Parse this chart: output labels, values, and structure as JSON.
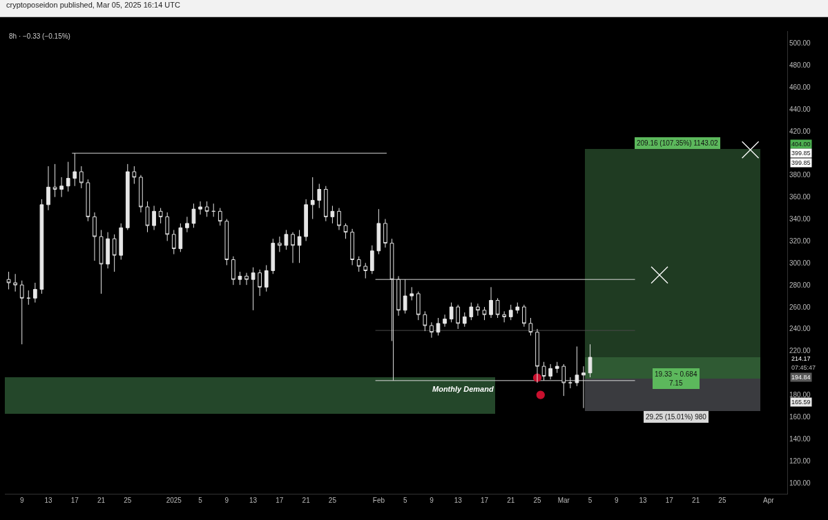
{
  "chart_data": {
    "type": "candlestick",
    "title": "cryptoposeidon published, Mar 05, 2025 16:14 UTC",
    "subtitle": "8h · −0.33 (−0.15%)",
    "color": "#e6e6e6",
    "x": [
      "2024-12-07",
      "2024-12-08",
      "2024-12-09",
      "2024-12-10",
      "2024-12-11",
      "2024-12-12",
      "2024-12-13",
      "2024-12-14",
      "2024-12-15",
      "2024-12-16",
      "2024-12-17",
      "2024-12-18",
      "2024-12-19",
      "2024-12-20",
      "2024-12-21",
      "2024-12-22",
      "2024-12-23",
      "2024-12-24",
      "2024-12-25",
      "2024-12-26",
      "2024-12-27",
      "2024-12-28",
      "2024-12-29",
      "2024-12-30",
      "2024-12-31",
      "2025-01-01",
      "2025-01-02",
      "2025-01-03",
      "2025-01-04",
      "2025-01-05",
      "2025-01-06",
      "2025-01-07",
      "2025-01-08",
      "2025-01-09",
      "2025-01-10",
      "2025-01-11",
      "2025-01-12",
      "2025-01-13",
      "2025-01-14",
      "2025-01-15",
      "2025-01-16",
      "2025-01-17",
      "2025-01-18",
      "2025-01-19",
      "2025-01-20",
      "2025-01-21",
      "2025-01-22",
      "2025-01-23",
      "2025-01-24",
      "2025-01-25",
      "2025-01-26",
      "2025-01-27",
      "2025-01-28",
      "2025-01-29",
      "2025-01-30",
      "2025-01-31",
      "2025-02-01",
      "2025-02-02",
      "2025-02-03",
      "2025-02-04",
      "2025-02-05",
      "2025-02-06",
      "2025-02-07",
      "2025-02-08",
      "2025-02-09",
      "2025-02-10",
      "2025-02-11",
      "2025-02-12",
      "2025-02-13",
      "2025-02-14",
      "2025-02-15",
      "2025-02-16",
      "2025-02-17",
      "2025-02-18",
      "2025-02-19",
      "2025-02-20",
      "2025-02-21",
      "2025-02-22",
      "2025-02-23",
      "2025-02-24",
      "2025-02-25",
      "2025-02-26",
      "2025-02-27",
      "2025-02-28",
      "2025-03-01",
      "2025-03-02",
      "2025-03-03",
      "2025-03-04",
      "2025-03-05"
    ],
    "ohlc": [
      [
        285,
        292,
        276,
        282
      ],
      [
        282,
        290,
        274,
        280
      ],
      [
        280,
        284,
        226,
        268
      ],
      [
        268,
        275,
        262,
        268
      ],
      [
        268,
        282,
        264,
        276
      ],
      [
        276,
        358,
        272,
        353
      ],
      [
        353,
        388,
        348,
        369
      ],
      [
        369,
        390,
        360,
        367
      ],
      [
        367,
        378,
        360,
        370
      ],
      [
        370,
        392,
        365,
        377
      ],
      [
        377,
        399.85,
        370,
        383
      ],
      [
        383,
        388,
        368,
        373
      ],
      [
        373,
        376,
        338,
        342
      ],
      [
        342,
        346,
        302,
        324
      ],
      [
        324,
        330,
        272,
        299
      ],
      [
        299,
        328,
        295,
        322
      ],
      [
        322,
        326,
        292,
        307
      ],
      [
        307,
        336,
        303,
        332
      ],
      [
        332,
        390,
        330,
        383
      ],
      [
        383,
        388,
        372,
        378
      ],
      [
        378,
        380,
        346,
        351
      ],
      [
        351,
        356,
        328,
        334
      ],
      [
        334,
        352,
        330,
        347
      ],
      [
        347,
        350,
        336,
        342
      ],
      [
        342,
        346,
        320,
        326
      ],
      [
        326,
        330,
        308,
        313
      ],
      [
        313,
        336,
        310,
        332
      ],
      [
        332,
        342,
        328,
        336
      ],
      [
        336,
        354,
        332,
        349
      ],
      [
        349,
        356,
        344,
        351
      ],
      [
        351,
        356,
        342,
        347
      ],
      [
        347,
        354,
        342,
        347
      ],
      [
        347,
        350,
        334,
        338
      ],
      [
        338,
        340,
        298,
        303
      ],
      [
        303,
        306,
        280,
        285
      ],
      [
        285,
        292,
        280,
        288
      ],
      [
        288,
        291,
        280,
        285
      ],
      [
        285,
        296,
        257,
        291
      ],
      [
        291,
        294,
        270,
        278
      ],
      [
        278,
        298,
        274,
        293
      ],
      [
        293,
        322,
        290,
        318
      ],
      [
        318,
        324,
        310,
        316
      ],
      [
        316,
        330,
        312,
        326
      ],
      [
        326,
        328,
        300,
        316
      ],
      [
        316,
        330,
        300,
        324
      ],
      [
        324,
        358,
        320,
        353
      ],
      [
        353,
        378,
        340,
        357
      ],
      [
        357,
        372,
        350,
        367
      ],
      [
        367,
        370,
        338,
        342
      ],
      [
        342,
        352,
        336,
        347
      ],
      [
        347,
        350,
        330,
        334
      ],
      [
        334,
        336,
        322,
        328
      ],
      [
        328,
        331,
        298,
        303
      ],
      [
        303,
        306,
        292,
        297
      ],
      [
        297,
        300,
        286,
        293
      ],
      [
        293,
        316,
        290,
        311
      ],
      [
        311,
        349,
        308,
        336
      ],
      [
        336,
        340,
        314,
        318
      ],
      [
        318,
        322,
        229,
        285
      ],
      [
        285,
        288,
        252,
        257
      ],
      [
        257,
        285,
        254,
        270
      ],
      [
        270,
        278,
        266,
        272
      ],
      [
        272,
        274,
        248,
        253
      ],
      [
        253,
        256,
        238,
        243
      ],
      [
        243,
        246,
        232,
        237
      ],
      [
        237,
        250,
        234,
        245
      ],
      [
        245,
        253,
        242,
        249
      ],
      [
        249,
        264,
        246,
        260
      ],
      [
        260,
        262,
        240,
        245
      ],
      [
        245,
        255,
        242,
        251
      ],
      [
        251,
        264,
        248,
        260
      ],
      [
        260,
        263,
        252,
        257
      ],
      [
        257,
        260,
        248,
        253
      ],
      [
        253,
        278,
        250,
        266
      ],
      [
        266,
        268,
        250,
        253
      ],
      [
        253,
        256,
        246,
        251
      ],
      [
        251,
        262,
        248,
        257
      ],
      [
        257,
        264,
        254,
        260
      ],
      [
        260,
        262,
        242,
        245
      ],
      [
        245,
        250,
        234,
        237
      ],
      [
        237,
        240,
        191,
        206
      ],
      [
        206,
        210,
        193,
        197
      ],
      [
        197,
        208,
        194,
        204
      ],
      [
        204,
        210,
        200,
        206
      ],
      [
        206,
        208,
        179,
        191
      ],
      [
        191,
        196,
        186,
        191
      ],
      [
        191,
        224,
        188,
        198
      ],
      [
        198,
        206,
        168,
        200
      ],
      [
        200,
        226,
        196,
        214.17
      ]
    ],
    "series": [
      {
        "type": "bar",
        "color": "#24472a",
        "x": [
          "2024-12-24T23:00",
          "2025-01-31T01:00"
        ],
        "base": [
          162.7,
          162.7
        ],
        "values": [
          33.6,
          33.6
        ]
      },
      {
        "type": "bar",
        "color": "#1f3b22",
        "x": [
          "2025-03-10T20:00",
          "2025-03-24T02:00"
        ],
        "base": [
          194.84,
          194.84
        ],
        "values": [
          209.16,
          209.16
        ]
      },
      {
        "type": "bar",
        "color": "#2f5a33",
        "x": [
          "2025-03-10T20:00",
          "2025-03-24T02:00"
        ],
        "base": [
          194.84,
          194.84
        ],
        "values": [
          19.33,
          19.33
        ]
      },
      {
        "type": "bar",
        "color": "#3a3b3f",
        "x": [
          "2025-03-10T20:00",
          "2025-03-24T02:00"
        ],
        "base": [
          165.59,
          165.59
        ],
        "values": [
          29.25,
          29.25
        ]
      },
      {
        "type": "line",
        "color": "#d9d9d9",
        "x": [
          "2024-12-16T14:00",
          "2025-02-02T05:00"
        ],
        "values": [
          399.85,
          399.85
        ]
      },
      {
        "type": "line",
        "color": "#d9d9d9",
        "x": [
          "2025-01-31T12:00",
          "2025-03-11T19:00"
        ],
        "values": [
          285,
          285
        ]
      },
      {
        "type": "line",
        "color": "#4a4a4a",
        "x": [
          "2025-01-31T12:00",
          "2025-03-11T19:00"
        ],
        "values": [
          238.6,
          238.6
        ]
      },
      {
        "type": "line",
        "color": "#d9d9d9",
        "x": [
          "2025-01-31T12:00",
          "2025-03-11T19:00"
        ],
        "values": [
          193,
          193
        ]
      },
      {
        "type": "line",
        "color": "#d9d9d9",
        "x": [
          "2025-02-03T05:00",
          "2025-02-03T05:00"
        ],
        "values": [
          193,
          285
        ]
      },
      {
        "type": "scatter",
        "marker": "cross",
        "color": "#ffffff",
        "x": [
          "2025-03-15T12:00",
          "2025-03-29T06:00"
        ],
        "values": [
          289,
          402.9
        ]
      },
      {
        "type": "scatter",
        "marker": "circle",
        "color": "#c8102e",
        "x": [
          "2025-02-25T00:00",
          "2025-02-25T12:00"
        ],
        "values": [
          195.6,
          180
        ]
      }
    ],
    "xlim": [
      "2024-12-06T10:00",
      "2025-04-03T20:00"
    ],
    "xticks": [
      {
        "value": "2024-12-09",
        "label": "9"
      },
      {
        "value": "2024-12-13",
        "label": "13"
      },
      {
        "value": "2024-12-17",
        "label": "17"
      },
      {
        "value": "2024-12-21",
        "label": "21"
      },
      {
        "value": "2024-12-25",
        "label": "25"
      },
      {
        "value": "2025-01-01",
        "label": "2025"
      },
      {
        "value": "2025-01-05",
        "label": "5"
      },
      {
        "value": "2025-01-09",
        "label": "9"
      },
      {
        "value": "2025-01-13",
        "label": "13"
      },
      {
        "value": "2025-01-17",
        "label": "17"
      },
      {
        "value": "2025-01-21",
        "label": "21"
      },
      {
        "value": "2025-01-25",
        "label": "25"
      },
      {
        "value": "2025-02-01",
        "label": "Feb"
      },
      {
        "value": "2025-02-05",
        "label": "5"
      },
      {
        "value": "2025-02-09",
        "label": "9"
      },
      {
        "value": "2025-02-13",
        "label": "13"
      },
      {
        "value": "2025-02-17",
        "label": "17"
      },
      {
        "value": "2025-02-21",
        "label": "21"
      },
      {
        "value": "2025-02-25",
        "label": "25"
      },
      {
        "value": "2025-03-01",
        "label": "Mar"
      },
      {
        "value": "2025-03-05",
        "label": "5"
      },
      {
        "value": "2025-03-09",
        "label": "9"
      },
      {
        "value": "2025-03-13",
        "label": "13"
      },
      {
        "value": "2025-03-17",
        "label": "17"
      },
      {
        "value": "2025-03-21",
        "label": "21"
      },
      {
        "value": "2025-03-25",
        "label": "25"
      },
      {
        "value": "2025-04-01",
        "label": "Apr"
      }
    ],
    "ylim": [
      90,
      511
    ],
    "yticks": [
      {
        "value": 100,
        "label": "100.00"
      },
      {
        "value": 120,
        "label": "120.00"
      },
      {
        "value": 140,
        "label": "140.00"
      },
      {
        "value": 160,
        "label": "160.00"
      },
      {
        "value": 180,
        "label": "180.00"
      },
      {
        "value": 220,
        "label": "220.00"
      },
      {
        "value": 240,
        "label": "240.00"
      },
      {
        "value": 260,
        "label": "260.00"
      },
      {
        "value": 280,
        "label": "280.00"
      },
      {
        "value": 300,
        "label": "300.00"
      },
      {
        "value": 320,
        "label": "320.00"
      },
      {
        "value": 340,
        "label": "340.00"
      },
      {
        "value": 360,
        "label": "360.00"
      },
      {
        "value": 380,
        "label": "380.00"
      },
      {
        "value": 420,
        "label": "420.00"
      },
      {
        "value": 440,
        "label": "440.00"
      },
      {
        "value": 460,
        "label": "460.00"
      },
      {
        "value": 480,
        "label": "480.00"
      },
      {
        "value": 500,
        "label": "500.00"
      }
    ],
    "grid": false,
    "annotations": [
      "Monthly Demand",
      {
        "text": "209.16 (107.35%) 1143.02",
        "x": "2025-03-18T06:00",
        "y": 404
      },
      {
        "text": "19.33 ~ 0.684\n7.15",
        "x": "2025-03-18T00:00",
        "y": 194.84
      },
      {
        "text": "29.25 (15.01%) 980",
        "x": "2025-03-18T00:00",
        "y": 165.59
      },
      "404.00",
      "399.85",
      "399.85",
      "214.17",
      "07:45:47",
      "194.84",
      "165.59"
    ]
  }
}
